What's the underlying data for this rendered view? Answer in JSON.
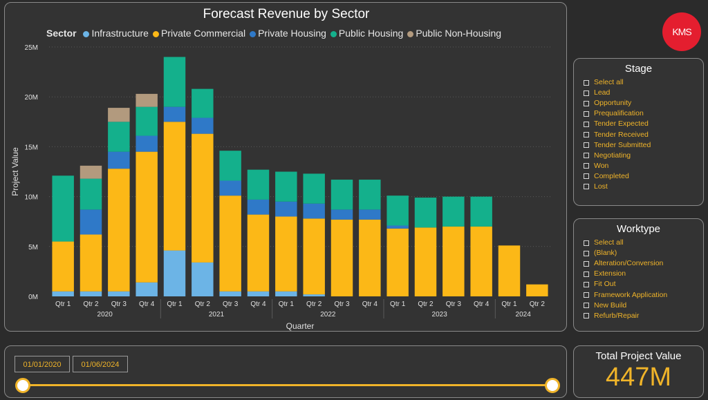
{
  "chart": {
    "title": "Forecast Revenue by Sector",
    "legend_title": "Sector",
    "y_axis_label": "Project Value",
    "x_axis_label": "Quarter"
  },
  "chart_data": {
    "type": "bar",
    "stacked": true,
    "title": "Forecast Revenue by Sector",
    "xlabel": "Quarter",
    "ylabel": "Project Value",
    "ylim": [
      0,
      25000000
    ],
    "yticks": [
      0,
      5000000,
      10000000,
      15000000,
      20000000,
      25000000
    ],
    "ytick_labels": [
      "0M",
      "5M",
      "10M",
      "15M",
      "20M",
      "25M"
    ],
    "grid": true,
    "legend_position": "top",
    "categories": [
      "Qtr 1",
      "Qtr 2",
      "Qtr 3",
      "Qtr 4",
      "Qtr 1",
      "Qtr 2",
      "Qtr 3",
      "Qtr 4",
      "Qtr 1",
      "Qtr 2",
      "Qtr 3",
      "Qtr 4",
      "Qtr 1",
      "Qtr 2",
      "Qtr 3",
      "Qtr 4",
      "Qtr 1",
      "Qtr 2"
    ],
    "year_groups": [
      {
        "label": "2020",
        "count": 4
      },
      {
        "label": "2021",
        "count": 4
      },
      {
        "label": "2022",
        "count": 4
      },
      {
        "label": "2023",
        "count": 4
      },
      {
        "label": "2024",
        "count": 2
      }
    ],
    "series": [
      {
        "name": "Infrastructure",
        "color": "#6cb4e6",
        "values": [
          0.5,
          0.5,
          0.5,
          1.4,
          4.6,
          3.4,
          0.5,
          0.5,
          0.5,
          0.2,
          0,
          0,
          0,
          0,
          0,
          0,
          0,
          0
        ]
      },
      {
        "name": "Private Commercial",
        "color": "#fcb817",
        "values": [
          5.0,
          5.7,
          12.3,
          13.1,
          12.9,
          12.9,
          9.6,
          7.7,
          7.5,
          7.6,
          7.7,
          7.7,
          6.8,
          6.9,
          7.0,
          7.0,
          5.1,
          1.2
        ]
      },
      {
        "name": "Private Housing",
        "color": "#2f79c8",
        "values": [
          0,
          2.5,
          1.7,
          1.6,
          1.5,
          1.6,
          1.5,
          1.5,
          1.5,
          1.5,
          1.0,
          1.0,
          0.3,
          0,
          0,
          0,
          0,
          0
        ]
      },
      {
        "name": "Public Housing",
        "color": "#14b08c",
        "values": [
          6.6,
          3.1,
          3.0,
          2.9,
          5.0,
          2.9,
          3.0,
          3.0,
          3.0,
          3.0,
          3.0,
          3.0,
          3.0,
          3.0,
          3.0,
          3.0,
          0,
          0
        ]
      },
      {
        "name": "Public Non-Housing",
        "color": "#b29a7e",
        "values": [
          0,
          1.3,
          1.4,
          1.3,
          0,
          0,
          0,
          0,
          0,
          0,
          0,
          0,
          0,
          0,
          0,
          0,
          0,
          0
        ]
      }
    ],
    "value_unit": "M"
  },
  "stage": {
    "title": "Stage",
    "items": [
      "Select all",
      "Lead",
      "Opportunity",
      "Prequalification",
      "Tender Expected",
      "Tender Received",
      "Tender Submitted",
      "Negotiating",
      "Won",
      "Completed",
      "Lost"
    ]
  },
  "worktype": {
    "title": "Worktype",
    "items": [
      "Select all",
      "(Blank)",
      "Alteration/Conversion",
      "Extension",
      "Fit Out",
      "Framework Application",
      "New Build",
      "Refurb/Repair"
    ]
  },
  "logo": {
    "text": "KMS"
  },
  "date_range": {
    "start": "01/01/2020",
    "end": "01/06/2024",
    "slider_start_fraction": 0.0,
    "slider_end_fraction": 1.0
  },
  "total": {
    "label": "Total Project Value",
    "value": "447M"
  },
  "colors": {
    "accent": "#f0b429",
    "background": "#2b2b2b",
    "panel": "#333333",
    "logo": "#e41e2f"
  }
}
